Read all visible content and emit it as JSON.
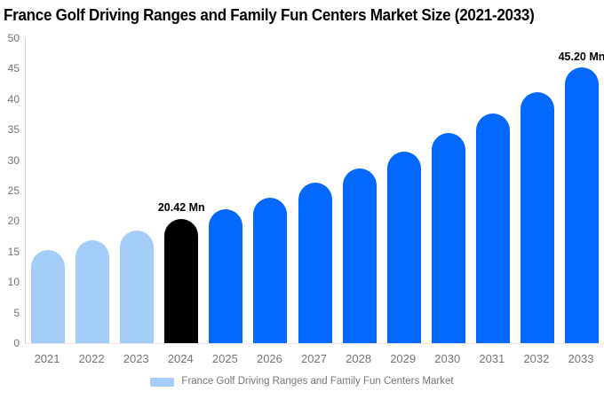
{
  "header": {
    "title": "France Golf Driving Ranges and Family Fun Centers Market Size (2021-2033)"
  },
  "chart_data": {
    "type": "bar",
    "title": "France Golf Driving Ranges and Family Fun Centers Market Size (2021-2033)",
    "xlabel": "",
    "ylabel": "",
    "ylim": [
      0,
      50
    ],
    "yticks": [
      0,
      5,
      10,
      15,
      20,
      25,
      30,
      35,
      40,
      45,
      50
    ],
    "grid": false,
    "legend_position": "bottom",
    "categories": [
      "2021",
      "2022",
      "2023",
      "2024",
      "2025",
      "2026",
      "2027",
      "2028",
      "2029",
      "2030",
      "2031",
      "2032",
      "2033"
    ],
    "series": [
      {
        "name": "France Golf Driving Ranges and Family Fun Centers Market",
        "values": [
          15.3,
          16.9,
          18.4,
          20.42,
          22.0,
          23.9,
          26.3,
          28.7,
          31.4,
          34.5,
          37.6,
          41.1,
          45.2
        ]
      }
    ],
    "bar_segments": [
      "historical",
      "historical",
      "historical",
      "current",
      "forecast",
      "forecast",
      "forecast",
      "forecast",
      "forecast",
      "forecast",
      "forecast",
      "forecast",
      "forecast"
    ],
    "segment_colors": {
      "historical": "#a5cdfa",
      "current": "#000000",
      "forecast": "#0568fd"
    },
    "annotations": [
      {
        "category": "2024",
        "text": "20.42 Mn"
      },
      {
        "category": "2033",
        "text": "45.20 Mn"
      }
    ]
  },
  "legend": {
    "items": [
      {
        "label": "France Golf Driving Ranges and Family Fun Centers Market",
        "swatch_color": "#a5cdfa"
      }
    ]
  },
  "axis": {
    "label_color": "#757575",
    "line_color": "#cccccc",
    "baseline_color": "#e8e8e8"
  }
}
